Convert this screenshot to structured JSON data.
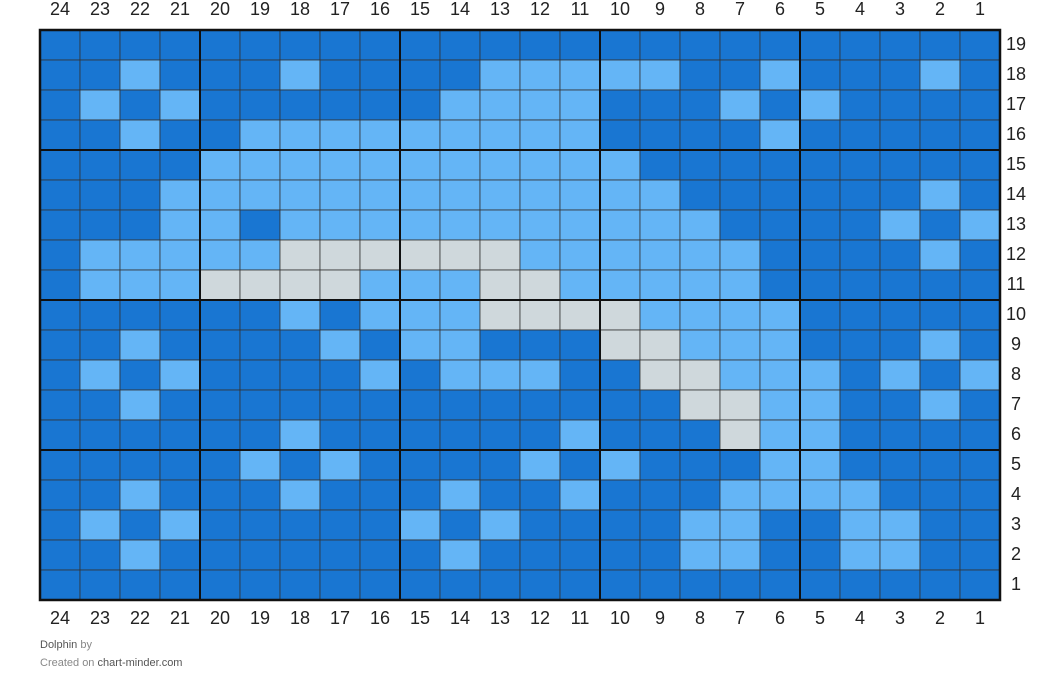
{
  "grid": {
    "column_labels": [
      24,
      23,
      22,
      21,
      20,
      19,
      18,
      17,
      16,
      15,
      14,
      13,
      12,
      11,
      10,
      9,
      8,
      7,
      6,
      5,
      4,
      3,
      2,
      1
    ],
    "row_labels": [
      19,
      18,
      17,
      16,
      15,
      14,
      13,
      12,
      11,
      10,
      9,
      8,
      7,
      6,
      5,
      4,
      3,
      2,
      1
    ],
    "colors": {
      "D": "#1976d2",
      "L": "#64b5f6",
      "G": "#cfd8dc"
    },
    "rows": [
      "DDDDDDDDDDDDDDDDDDDDDDDD",
      "DDLDDDLDDDDLLLLLDDLDDDLD",
      "DLDLDDDDDDLLLLDDDLDLDDDD",
      "DDLDDLLLLLLLLLDDDDLDDDDD",
      "DDDDLLLLLLLLLLLDDDDDDDDD",
      "DDDLLLLLLLLLLLLLDDDDDDLD",
      "DDDLLDLLLLLLLLLLLDDDDLDL",
      "DLLLLLGGGGGGLLLLLLDDDDLD",
      "DLLLGGGGLLLGGLLLLLDDDDDD",
      "DDDDDDLDLLLGGGGLLLLDDDDD",
      "DDLDDDDLDLLDDDGGLLLDDDLD",
      "DLDLDDDDLDLLLDDGGLLLDLDL",
      "DDLDDDDDDDDDDDDDGGLLDDLD",
      "DDDDDDLDDDDDDLDDDGLLDDDD",
      "DDDDDLDLDDDDLDLDDDLLDDDD",
      "DDLDDDLDDDLDDLDDDLLLLDDD",
      "DLDLDDDDDLDLDDDDLLDDLLDD",
      "DDLDDDDDDDLDDDDDLLDDLLDD",
      "DDDDDDDDDDDDDDDDDDDDDDDD"
    ]
  },
  "footer": {
    "title": "Dolphin",
    "by": "by",
    "created": "Created on",
    "site": "chart-minder.com"
  }
}
